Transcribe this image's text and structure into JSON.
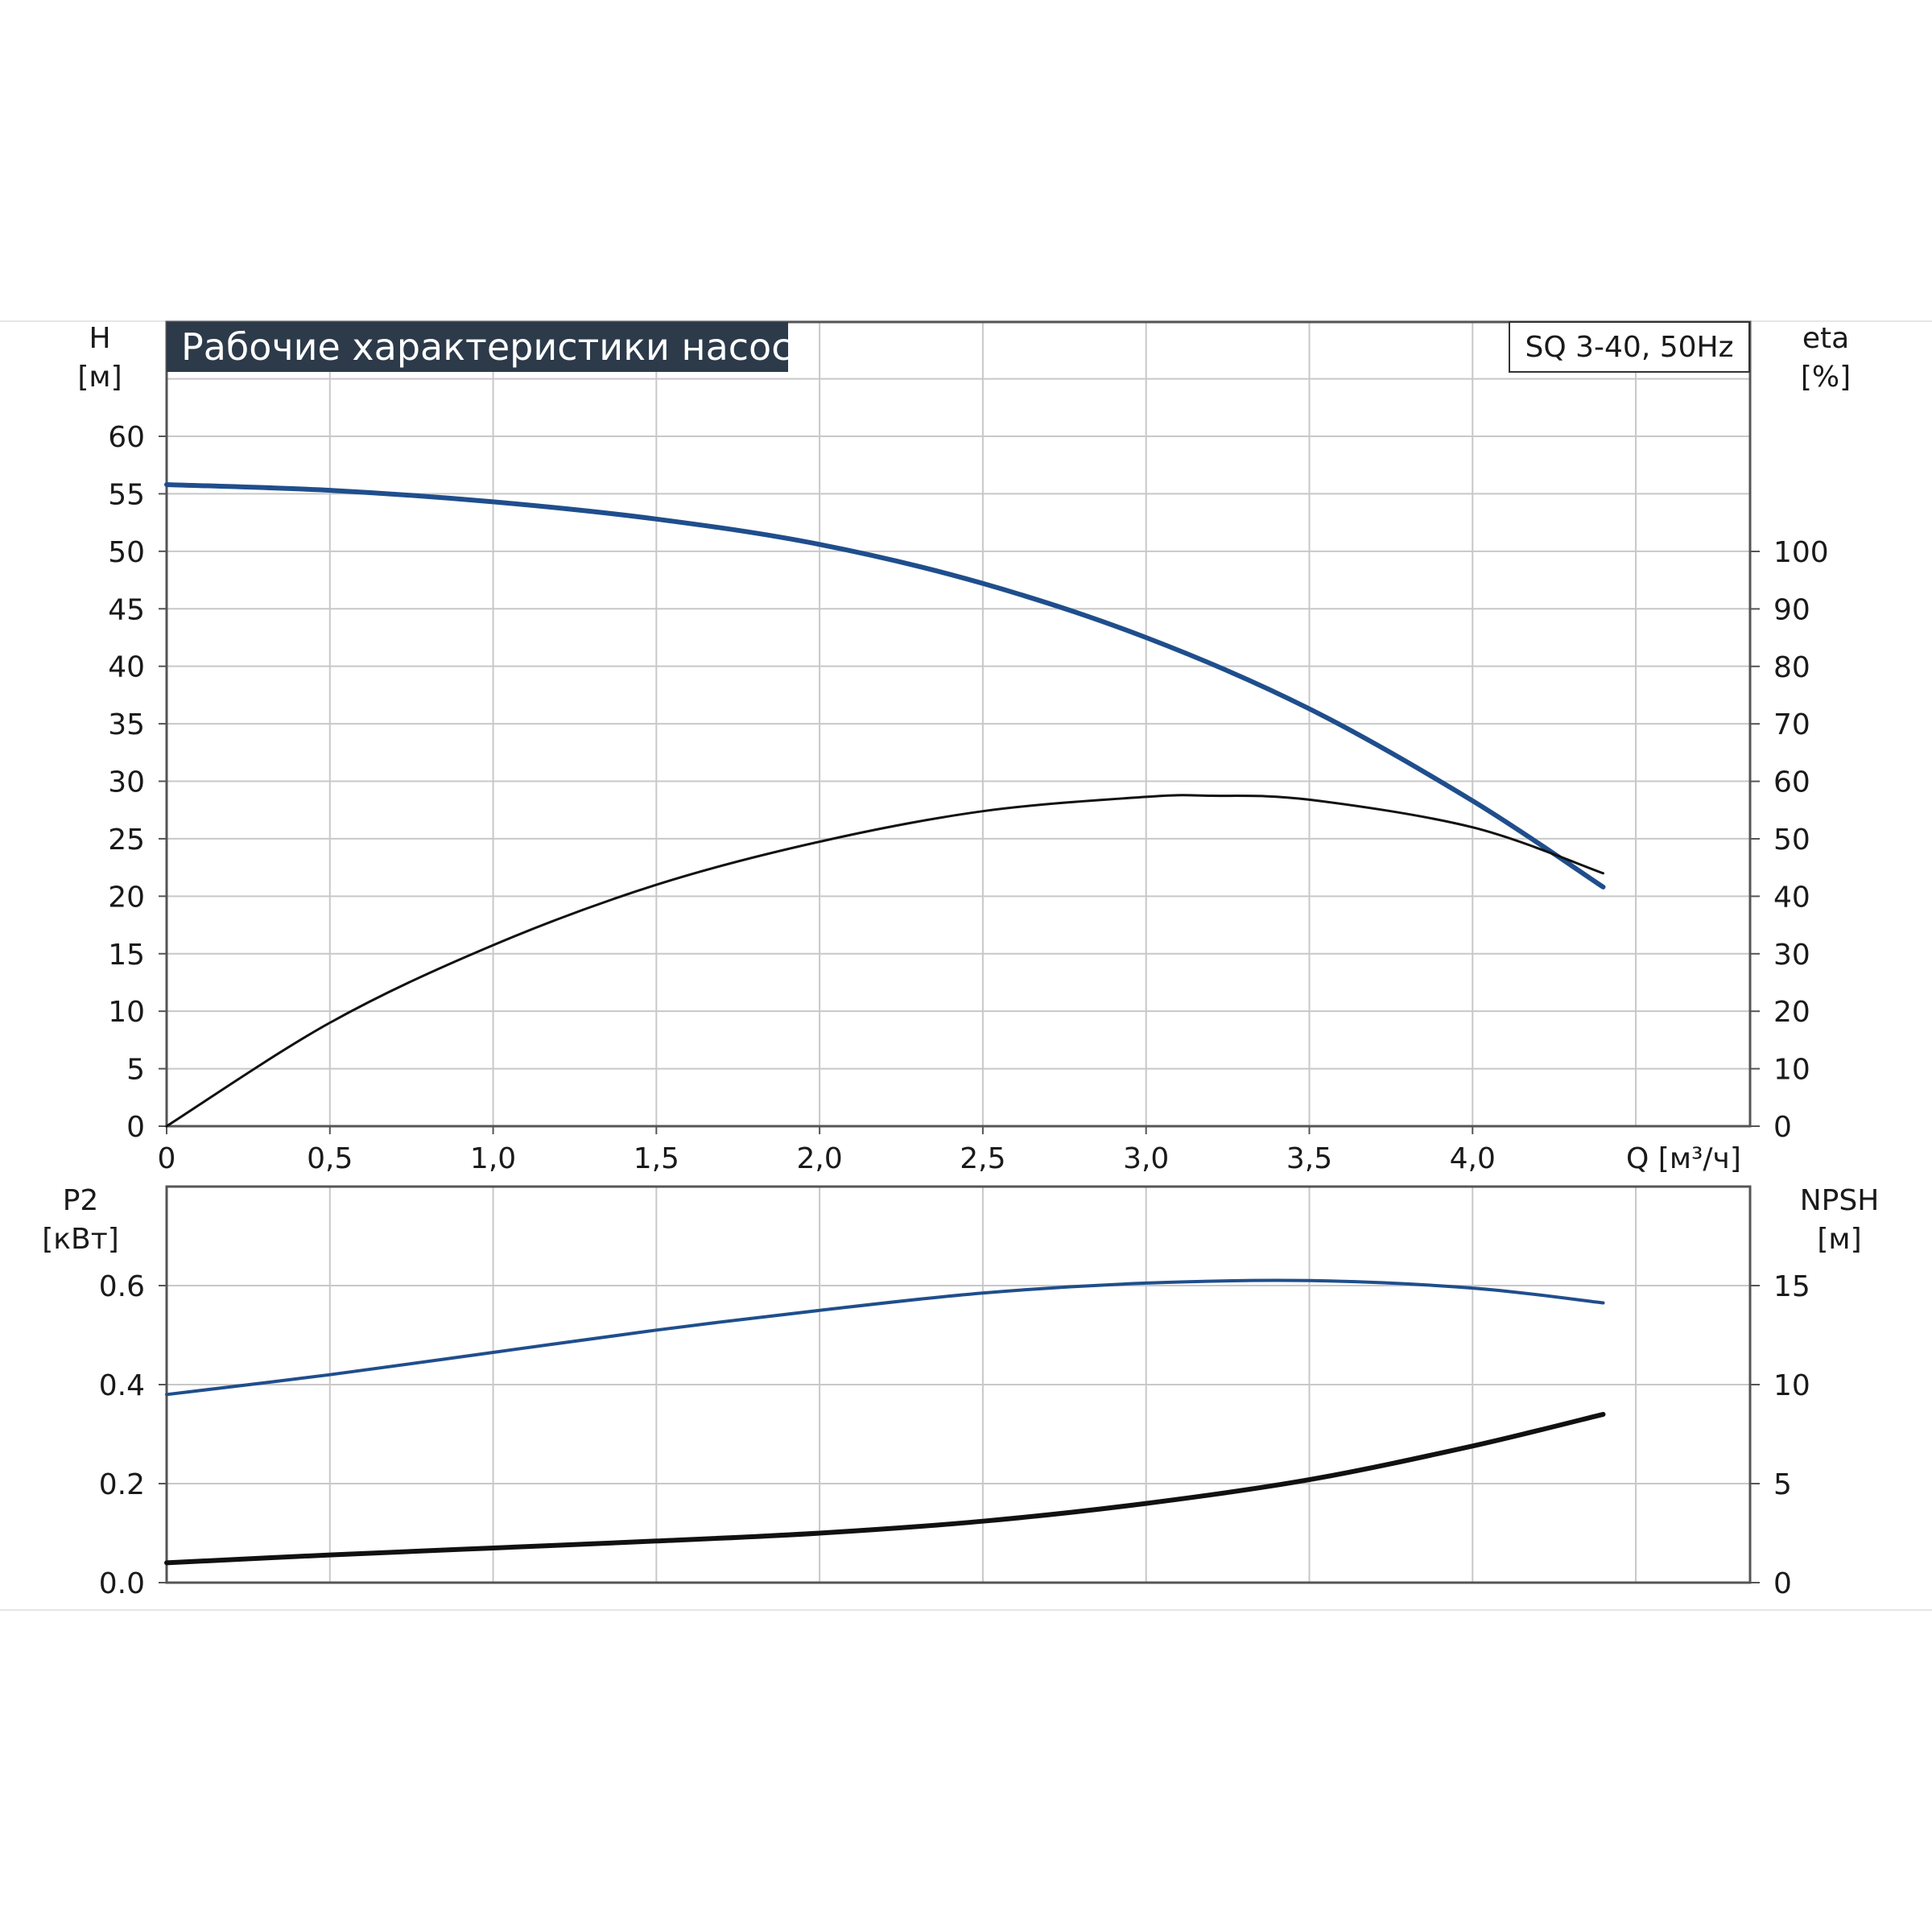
{
  "page": {
    "title": "Рабочие характеристики насоса",
    "model": "SQ 3-40, 50Hz"
  },
  "colors": {
    "blue_curve": "#1f4e8c",
    "black_curve": "#111111",
    "grid": "#c8c8c8",
    "frame": "#555555",
    "title_bg": "#2c3a4a"
  },
  "axes": {
    "top_left": {
      "label": "H",
      "unit": "[м]"
    },
    "top_right": {
      "label": "eta",
      "unit": "[%]"
    },
    "x": {
      "label": "Q [м³/ч]"
    },
    "bottom_left": {
      "label": "P2",
      "unit": "[кВт]"
    },
    "bottom_right": {
      "label": "NPSH",
      "unit": "[м]"
    }
  },
  "chart_data": [
    {
      "type": "line",
      "title": "Рабочие характеристики насоса",
      "xlabel": "Q [м³/ч]",
      "ylabel": "H [м]",
      "y2label": "eta [%]",
      "xlim": [
        0,
        4.85
      ],
      "ylim": [
        0,
        60
      ],
      "y2lim": [
        0,
        100
      ],
      "x_ticks": [
        "0",
        "0,5",
        "1,0",
        "1,5",
        "2,0",
        "2,5",
        "3,0",
        "3,5",
        "4,0"
      ],
      "y_ticks": [
        "0",
        "5",
        "10",
        "15",
        "20",
        "25",
        "30",
        "35",
        "40",
        "45",
        "50",
        "55",
        "60"
      ],
      "y2_ticks": [
        "0",
        "10",
        "20",
        "30",
        "40",
        "50",
        "60",
        "70",
        "80",
        "90",
        "100"
      ],
      "grid": true,
      "series": [
        {
          "axis": "left",
          "color": "#1f4e8c",
          "x": [
            0,
            0.5,
            1.0,
            1.5,
            2.0,
            2.5,
            3.0,
            3.5,
            4.0,
            4.4
          ],
          "y": [
            55.8,
            55.3,
            54.3,
            52.8,
            50.6,
            47.2,
            42.5,
            36.3,
            28.3,
            20.8
          ]
        },
        {
          "axis": "right",
          "color": "#111111",
          "x": [
            0,
            0.5,
            1.0,
            1.5,
            2.0,
            2.5,
            3.0,
            3.2,
            3.5,
            4.0,
            4.4
          ],
          "y": [
            0,
            18,
            31.5,
            42,
            49.5,
            54.8,
            57.3,
            57.5,
            56.8,
            52,
            44
          ]
        }
      ]
    },
    {
      "type": "line",
      "xlabel": "Q [м³/ч]",
      "ylabel": "P2 [кВт]",
      "y2label": "NPSH [м]",
      "xlim": [
        0,
        4.85
      ],
      "ylim": [
        0,
        0.8
      ],
      "y2lim": [
        0,
        20
      ],
      "y_ticks": [
        "0.0",
        "0.2",
        "0.4",
        "0.6"
      ],
      "y2_ticks": [
        "0",
        "5",
        "10",
        "15"
      ],
      "grid": true,
      "series": [
        {
          "axis": "left",
          "color": "#1f4e8c",
          "x": [
            0,
            0.5,
            1.0,
            1.5,
            2.0,
            2.5,
            3.0,
            3.5,
            4.0,
            4.4
          ],
          "y": [
            0.38,
            0.42,
            0.465,
            0.51,
            0.55,
            0.585,
            0.605,
            0.61,
            0.595,
            0.565
          ]
        },
        {
          "axis": "right",
          "color": "#111111",
          "x": [
            0,
            0.5,
            1.0,
            1.5,
            2.0,
            2.5,
            3.0,
            3.5,
            4.0,
            4.4
          ],
          "y": [
            1.0,
            1.4,
            1.75,
            2.1,
            2.5,
            3.1,
            4.0,
            5.2,
            6.9,
            8.5
          ]
        }
      ]
    }
  ]
}
